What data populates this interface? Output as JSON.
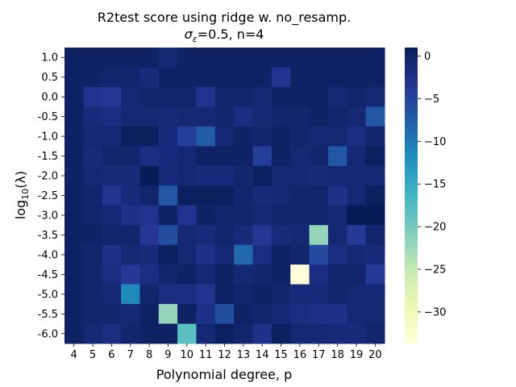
{
  "chart_data": {
    "type": "heatmap",
    "title": "R2test score using ridge w. no_resamp.",
    "subtitle_symbol": "σ",
    "subtitle_symbol_sub": "ε",
    "subtitle_rest": "=0.5,  n=4",
    "xlabel": "Polynomial degree, p",
    "ylabel_main": "log",
    "ylabel_sub": "10",
    "ylabel_arg": "(λ)",
    "x_ticks": [
      "4",
      "5",
      "6",
      "7",
      "8",
      "9",
      "10",
      "11",
      "12",
      "13",
      "14",
      "15",
      "16",
      "17",
      "18",
      "19",
      "20"
    ],
    "y_ticks": [
      "1.0",
      "0.5",
      "0.0",
      "-0.5",
      "-1.0",
      "-1.5",
      "-2.0",
      "-2.5",
      "-3.0",
      "-3.5",
      "-4.0",
      "-4.5",
      "-5.0",
      "-5.5",
      "-6.0"
    ],
    "colorbar_ticks": [
      "0",
      "−5",
      "−10",
      "−15",
      "−20",
      "−25",
      "−30"
    ],
    "colorbar_values": [
      0,
      -5,
      -10,
      -15,
      -20,
      -25,
      -30
    ],
    "vmin": -33.7,
    "vmax": 1,
    "colormap": "YlGnBu_r",
    "values": [
      [
        0,
        0,
        0,
        0,
        0,
        -1,
        0,
        0,
        0,
        0,
        0,
        0,
        0,
        0,
        0,
        0,
        0
      ],
      [
        0,
        0,
        -0.5,
        -0.5,
        -1.5,
        0,
        0,
        0,
        0,
        0,
        0,
        -3,
        0,
        0,
        0,
        0,
        0
      ],
      [
        0,
        -3,
        -3.5,
        -1,
        -0.5,
        -0.5,
        -0.5,
        -3,
        -0.5,
        -0.5,
        -1,
        0,
        0,
        0,
        -1,
        -0.5,
        -1
      ],
      [
        0,
        -1.5,
        -2,
        -1,
        -1,
        -1.5,
        -1,
        -1,
        -0.5,
        -2,
        -1,
        -0.5,
        -0.5,
        0,
        -0.5,
        -1,
        -7
      ],
      [
        0,
        -1,
        -1,
        0.5,
        0.5,
        -1.5,
        -4.5,
        -7.5,
        -1,
        0,
        -0.5,
        0,
        -0.5,
        -1,
        -1,
        -2,
        -0.5
      ],
      [
        0,
        -1.5,
        -0.5,
        -0.5,
        -2,
        -1.5,
        -1,
        0,
        0,
        0,
        -4.5,
        0,
        -1,
        -0.5,
        -7,
        -1,
        0.5
      ],
      [
        0,
        -1,
        -1.5,
        -1.5,
        1,
        -1.5,
        -1,
        -1.5,
        -1.5,
        -0.5,
        0.5,
        -1,
        -1,
        -1.5,
        -1,
        -1,
        -1
      ],
      [
        0,
        -0.5,
        -3,
        -1.5,
        -0.5,
        -7,
        0.5,
        0.5,
        0.5,
        -0.5,
        -1.5,
        -1,
        -0.5,
        -0.5,
        -2.5,
        -1,
        0.5
      ],
      [
        0,
        -0.5,
        -1,
        -2.5,
        -3,
        0,
        -3,
        0,
        -0.5,
        -0.5,
        -1,
        -0.5,
        -0.5,
        -0.5,
        -1,
        1,
        1
      ],
      [
        0,
        0,
        -0.5,
        -0.5,
        -3.5,
        -6,
        -1,
        -1.5,
        -0.5,
        -1.5,
        -3.5,
        -1.5,
        -1,
        -22,
        -1,
        -4,
        -0.5
      ],
      [
        0,
        -0.5,
        -2.5,
        -1,
        -1.5,
        0.5,
        -1,
        -2.5,
        -1,
        -8.5,
        -2,
        0,
        -0.5,
        -5.5,
        -2,
        -1,
        -1.5
      ],
      [
        0,
        -0.5,
        -2,
        -3.5,
        -2,
        -0.5,
        0,
        -1,
        0,
        -1,
        -0.5,
        0,
        -33.7,
        -2,
        -0.5,
        -0.5,
        -4
      ],
      [
        0,
        -0.5,
        -1,
        -11.5,
        -0.5,
        -2,
        -2,
        -3,
        0,
        -0.5,
        0,
        -0.5,
        -1.5,
        -1.5,
        -0.5,
        -1,
        -1
      ],
      [
        0,
        -0.5,
        -0.5,
        -1,
        0,
        -22,
        0,
        -2.5,
        -6,
        0,
        -0.5,
        -1,
        -2,
        -2.5,
        -2.5,
        -1,
        -1
      ],
      [
        0,
        -1,
        -2,
        -0.5,
        0,
        0,
        -18,
        -1,
        0.5,
        -0.5,
        -2.5,
        0.5,
        -1,
        -1,
        -1.5,
        -1.5,
        -0.5
      ]
    ]
  }
}
